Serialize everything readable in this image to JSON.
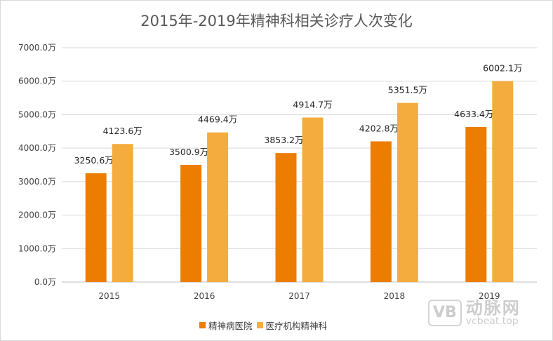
{
  "chart_data": {
    "type": "bar",
    "title": "2015年-2019年精神科相关诊疗人次变化",
    "categories": [
      "2015",
      "2016",
      "2017",
      "2018",
      "2019"
    ],
    "series": [
      {
        "name": "精神病医院",
        "color": "#ED7D00",
        "values": [
          3250.6,
          3500.9,
          3853.2,
          4202.8,
          4633.4
        ],
        "labels": [
          "3250.6万",
          "3500.9万",
          "3853.2万",
          "4202.8万",
          "4633.4万"
        ]
      },
      {
        "name": "医疗机构精神科",
        "color": "#F4AC3E",
        "values": [
          4123.6,
          4469.4,
          4914.7,
          5351.5,
          6002.1
        ],
        "labels": [
          "4123.6万",
          "4469.4万",
          "4914.7万",
          "5351.5万",
          "6002.1万"
        ]
      }
    ],
    "yticks": [
      "0.0万",
      "1000.0万",
      "2000.0万",
      "3000.0万",
      "4000.0万",
      "5000.0万",
      "6000.0万",
      "7000.0万"
    ],
    "ylim": [
      0,
      7000
    ],
    "xlabel": "",
    "ylabel": "",
    "grid": true,
    "legend": "bottom"
  },
  "watermark": {
    "logo": "VB",
    "name": "动脉网",
    "url": "vcbeat.top"
  }
}
